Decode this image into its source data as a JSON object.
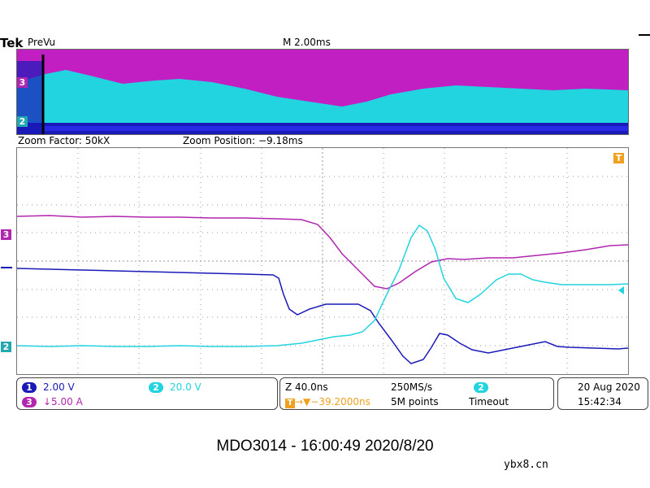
{
  "header": {
    "brand": "Tek",
    "mode": "PreVu",
    "timebase": "M 2.00ms"
  },
  "zoom": {
    "factor": "Zoom Factor: 50kX",
    "position": "Zoom Position: −9.18ms"
  },
  "markers": {
    "trigger": "T",
    "ch3": "3",
    "ch2": "2"
  },
  "channels": [
    {
      "id": "1",
      "scale": "2.00 V",
      "color": "#1a1ab8"
    },
    {
      "id": "2",
      "scale": "20.0 V",
      "color": "#22d3e0"
    },
    {
      "id": "3",
      "scale": "↓5.00 A",
      "color": "#b026b0"
    }
  ],
  "horizontal": {
    "scale": "Z 40.0ns",
    "rate": "250MS/s",
    "trigger_pos": "→▼−39.2000ns",
    "record": "5M points"
  },
  "trigger": {
    "channel": "2",
    "status": "Timeout"
  },
  "datetime": {
    "date": "20 Aug 2020",
    "time": "15:42:34"
  },
  "caption": "MDO3014 - 16:00:49   2020/8/20",
  "watermark": "ybx8.cn",
  "colors": {
    "ch1": "#1a1ab8",
    "ch2": "#22d3e0",
    "ch3": "#b026b0",
    "trigger": "#f0a020"
  }
}
